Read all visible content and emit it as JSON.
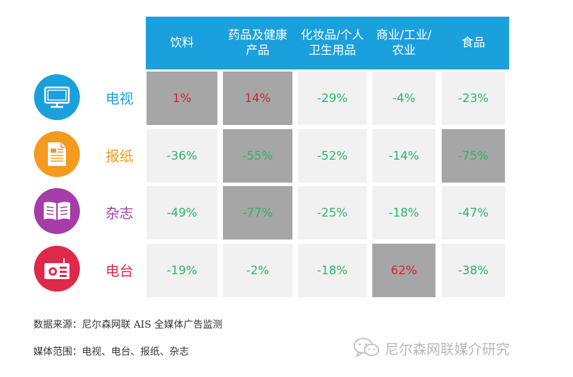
{
  "colors": {
    "header": "#1aa0dc",
    "negative_text": "#2db36b",
    "positive_text": "#d81e33",
    "cell_light": "#f1f1f1",
    "cell_dark": "#a6a6a6"
  },
  "chart_data": {
    "type": "table",
    "columns": [
      "饮料",
      "药品及健康\n产品",
      "化妆品/个人\n卫生用品",
      "商业/工业/\n农业",
      "食品"
    ],
    "rows": [
      {
        "label": "电视",
        "icon": "tv-icon",
        "color": "#1aa0dc",
        "values": [
          "1%",
          "14%",
          "-29%",
          "-4%",
          "-23%"
        ],
        "highlight": [
          true,
          true,
          false,
          false,
          false
        ]
      },
      {
        "label": "报纸",
        "icon": "newspaper-icon",
        "color": "#f39a1f",
        "values": [
          "-36%",
          "-55%",
          "-52%",
          "-14%",
          "-75%"
        ],
        "highlight": [
          false,
          true,
          false,
          false,
          true
        ]
      },
      {
        "label": "杂志",
        "icon": "magazine-icon",
        "color": "#a53ca7",
        "values": [
          "-49%",
          "-77%",
          "-25%",
          "-18%",
          "-47%"
        ],
        "highlight": [
          false,
          true,
          false,
          false,
          false
        ]
      },
      {
        "label": "电台",
        "icon": "radio-icon",
        "color": "#e0284a",
        "values": [
          "-19%",
          "-2%",
          "-18%",
          "62%",
          "-38%"
        ],
        "highlight": [
          false,
          false,
          false,
          true,
          false
        ]
      }
    ]
  },
  "footer": {
    "source": "数据来源：尼尔森网联 AIS 全媒体广告监测",
    "scope": "媒体范围：电视、电台、报纸、杂志"
  },
  "watermark": {
    "text": "尼尔森网联媒介研究",
    "icon": "wechat-icon"
  }
}
